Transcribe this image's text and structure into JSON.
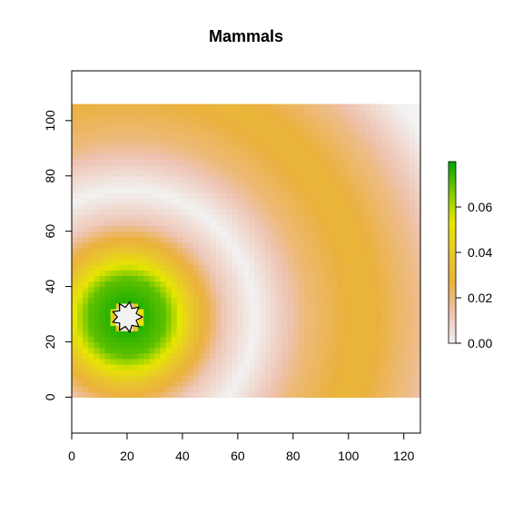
{
  "chart_data": {
    "type": "heatmap",
    "title": "Mammals",
    "xlabel": "",
    "ylabel": "",
    "xlim": [
      0,
      126
    ],
    "ylim": [
      -13,
      118
    ],
    "x_ticks": [
      "0",
      "20",
      "40",
      "60",
      "80",
      "100",
      "120"
    ],
    "y_ticks": [
      "0",
      "20",
      "40",
      "60",
      "80",
      "100"
    ],
    "raster_extent": {
      "x": [
        0,
        126
      ],
      "y": [
        0,
        106
      ]
    },
    "field": {
      "hotspot_center": [
        20,
        29
      ],
      "description_values": [
        {
          "distance": 4,
          "value": 0.0
        },
        {
          "distance": 6,
          "value": 0.076
        },
        {
          "distance": 14,
          "value": 0.07
        },
        {
          "distance": 20,
          "value": 0.05
        },
        {
          "distance": 27,
          "value": 0.03
        },
        {
          "distance": 35,
          "value": 0.012
        },
        {
          "distance": 46,
          "value": 0.0
        },
        {
          "distance": 65,
          "value": 0.02
        },
        {
          "distance": 85,
          "value": 0.03
        },
        {
          "distance": 105,
          "value": 0.018
        },
        {
          "distance": 125,
          "value": 0.0
        }
      ]
    },
    "colorbar": {
      "ticks": [
        "0.00",
        "0.02",
        "0.04",
        "0.06"
      ],
      "tick_values": [
        0,
        0.02,
        0.04,
        0.06
      ],
      "max": 0.08,
      "colors": [
        "#f2f2f2",
        "#eec3b1",
        "#ebb13e",
        "#e8c82a",
        "#e6e600",
        "#7fca00",
        "#00a600"
      ]
    },
    "grid": false,
    "legend": "right"
  }
}
